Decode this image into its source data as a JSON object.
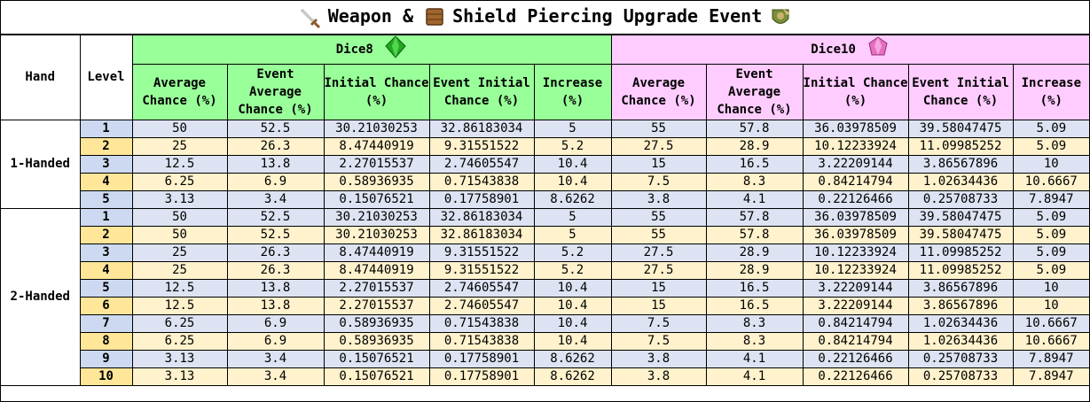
{
  "title": {
    "text": "Weapon & Shield Piercing Upgrade Event",
    "left_icons": [
      "sword-icon",
      "shield-icon"
    ],
    "right_icon": "dragon-shield-icon"
  },
  "headers": {
    "hand": "Hand",
    "level": "Level",
    "dice8": "Dice8",
    "dice10": "Dice10",
    "dice8_icon": "green-gem-icon",
    "dice10_icon": "pink-gem-icon",
    "columns": [
      "Average Chance (%)",
      "Event Average Chance (%)",
      "Initial Chance (%)",
      "Event Initial Chance (%)",
      "Increase (%)"
    ]
  },
  "colors": {
    "dice8_header": "#99ff99",
    "dice10_header": "#ffccff",
    "row_blue": "#dde3f2",
    "row_tan": "#fff2cc"
  },
  "groups": [
    {
      "hand": "1-Handed",
      "rows": [
        {
          "level": "1",
          "d8": [
            "50",
            "52.5",
            "30.21030253",
            "32.86183034",
            "5"
          ],
          "d10": [
            "55",
            "57.8",
            "36.03978509",
            "39.58047475",
            "5.09"
          ]
        },
        {
          "level": "2",
          "d8": [
            "25",
            "26.3",
            "8.47440919",
            "9.31551522",
            "5.2"
          ],
          "d10": [
            "27.5",
            "28.9",
            "10.12233924",
            "11.09985252",
            "5.09"
          ]
        },
        {
          "level": "3",
          "d8": [
            "12.5",
            "13.8",
            "2.27015537",
            "2.74605547",
            "10.4"
          ],
          "d10": [
            "15",
            "16.5",
            "3.22209144",
            "3.86567896",
            "10"
          ]
        },
        {
          "level": "4",
          "d8": [
            "6.25",
            "6.9",
            "0.58936935",
            "0.71543838",
            "10.4"
          ],
          "d10": [
            "7.5",
            "8.3",
            "0.84214794",
            "1.02634436",
            "10.6667"
          ]
        },
        {
          "level": "5",
          "d8": [
            "3.13",
            "3.4",
            "0.15076521",
            "0.17758901",
            "8.6262"
          ],
          "d10": [
            "3.8",
            "4.1",
            "0.22126466",
            "0.25708733",
            "7.8947"
          ]
        }
      ]
    },
    {
      "hand": "2-Handed",
      "rows": [
        {
          "level": "1",
          "d8": [
            "50",
            "52.5",
            "30.21030253",
            "32.86183034",
            "5"
          ],
          "d10": [
            "55",
            "57.8",
            "36.03978509",
            "39.58047475",
            "5.09"
          ]
        },
        {
          "level": "2",
          "d8": [
            "50",
            "52.5",
            "30.21030253",
            "32.86183034",
            "5"
          ],
          "d10": [
            "55",
            "57.8",
            "36.03978509",
            "39.58047475",
            "5.09"
          ]
        },
        {
          "level": "3",
          "d8": [
            "25",
            "26.3",
            "8.47440919",
            "9.31551522",
            "5.2"
          ],
          "d10": [
            "27.5",
            "28.9",
            "10.12233924",
            "11.09985252",
            "5.09"
          ]
        },
        {
          "level": "4",
          "d8": [
            "25",
            "26.3",
            "8.47440919",
            "9.31551522",
            "5.2"
          ],
          "d10": [
            "27.5",
            "28.9",
            "10.12233924",
            "11.09985252",
            "5.09"
          ]
        },
        {
          "level": "5",
          "d8": [
            "12.5",
            "13.8",
            "2.27015537",
            "2.74605547",
            "10.4"
          ],
          "d10": [
            "15",
            "16.5",
            "3.22209144",
            "3.86567896",
            "10"
          ]
        },
        {
          "level": "6",
          "d8": [
            "12.5",
            "13.8",
            "2.27015537",
            "2.74605547",
            "10.4"
          ],
          "d10": [
            "15",
            "16.5",
            "3.22209144",
            "3.86567896",
            "10"
          ]
        },
        {
          "level": "7",
          "d8": [
            "6.25",
            "6.9",
            "0.58936935",
            "0.71543838",
            "10.4"
          ],
          "d10": [
            "7.5",
            "8.3",
            "0.84214794",
            "1.02634436",
            "10.6667"
          ]
        },
        {
          "level": "8",
          "d8": [
            "6.25",
            "6.9",
            "0.58936935",
            "0.71543838",
            "10.4"
          ],
          "d10": [
            "7.5",
            "8.3",
            "0.84214794",
            "1.02634436",
            "10.6667"
          ]
        },
        {
          "level": "9",
          "d8": [
            "3.13",
            "3.4",
            "0.15076521",
            "0.17758901",
            "8.6262"
          ],
          "d10": [
            "3.8",
            "4.1",
            "0.22126466",
            "0.25708733",
            "7.8947"
          ]
        },
        {
          "level": "10",
          "d8": [
            "3.13",
            "3.4",
            "0.15076521",
            "0.17758901",
            "8.6262"
          ],
          "d10": [
            "3.8",
            "4.1",
            "0.22126466",
            "0.25708733",
            "7.8947"
          ]
        }
      ]
    }
  ]
}
